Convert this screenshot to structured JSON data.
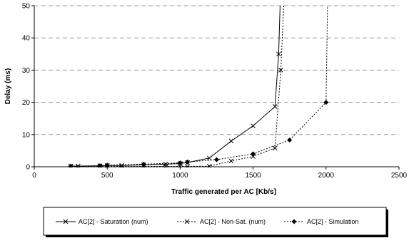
{
  "chart_data": {
    "type": "line",
    "title": "",
    "xlabel": "Traffic generated per AC [Kb/s]",
    "ylabel": "Delay (ms)",
    "xlim": [
      0,
      2500
    ],
    "ylim": [
      0,
      50
    ],
    "xticks": [
      "0",
      "500",
      "1000",
      "1500",
      "2000",
      "2500"
    ],
    "yticks": [
      "0",
      "10",
      "20",
      "30",
      "40",
      "50"
    ],
    "grid": "horizontal dashed",
    "legend_position": "bottom",
    "series": [
      {
        "name": "AC[2] - Saturation (num)",
        "line": "solid",
        "marker": "x",
        "x": [
          250,
          300,
          450,
          500,
          600,
          750,
          900,
          1000,
          1050,
          1200,
          1350,
          1500,
          1650,
          1675,
          1685
        ],
        "y": [
          0.2,
          0.2,
          0.3,
          0.4,
          0.4,
          0.6,
          0.8,
          1.0,
          1.3,
          2.7,
          8.0,
          12.7,
          18.7,
          35,
          50
        ]
      },
      {
        "name": "AC[2] - Non-Sat. (num)",
        "line": "dotted",
        "marker": "x",
        "x": [
          250,
          300,
          450,
          500,
          600,
          750,
          900,
          1000,
          1050,
          1200,
          1350,
          1500,
          1650,
          1690,
          1710
        ],
        "y": [
          0.1,
          0.1,
          0.1,
          0.1,
          0.1,
          0.1,
          0.1,
          0.1,
          0.1,
          0.2,
          1.8,
          3.2,
          5.8,
          30,
          50
        ]
      },
      {
        "name": "AC[2] - Simulation",
        "line": "dotted",
        "marker": "diamond",
        "x": [
          250,
          450,
          500,
          750,
          1000,
          1050,
          1250,
          1500,
          1750,
          2000,
          2010
        ],
        "y": [
          0.2,
          0.3,
          0.5,
          0.8,
          1.2,
          1.5,
          2.2,
          4.0,
          8.3,
          20.0,
          50
        ]
      }
    ]
  }
}
